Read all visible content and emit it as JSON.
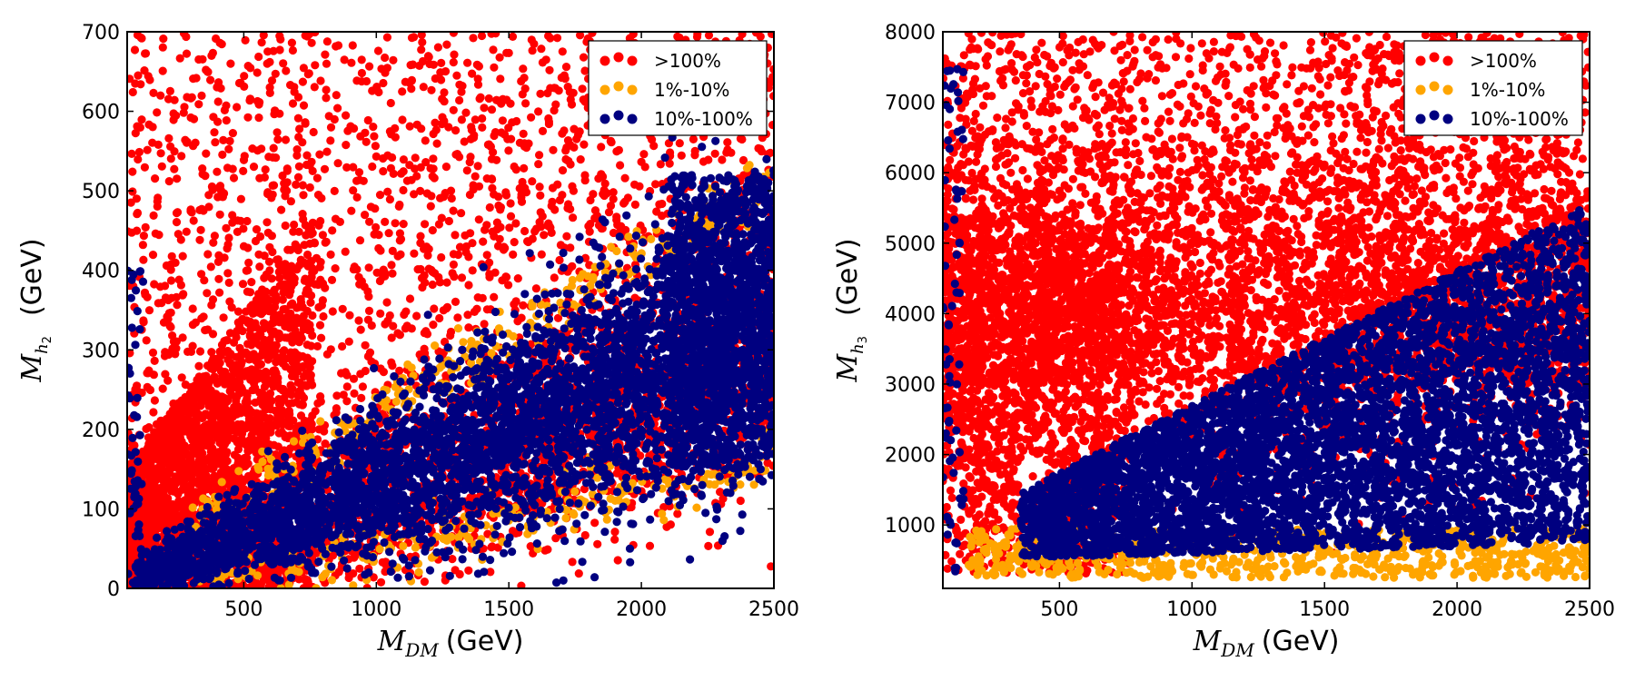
{
  "chart_data": [
    {
      "type": "scatter",
      "xlabel_math": "M",
      "xlabel_sub": "DM",
      "xlabel_unit": "(GeV)",
      "ylabel_math": "M",
      "ylabel_sub": "h",
      "ylabel_subsub": "2",
      "ylabel_unit": "(GeV)",
      "xlim": [
        60,
        2500
      ],
      "ylim": [
        0,
        700
      ],
      "xticks": [
        500,
        1000,
        1500,
        2000,
        2500
      ],
      "yticks": [
        0,
        100,
        200,
        300,
        400,
        500,
        600,
        700
      ],
      "legend_position": "top-right",
      "series": [
        {
          "name": ">100%",
          "color": "#ff0000",
          "region": "upper band: Mh2 from 0 to 700 GeV, dense at low mass, scattered above the diagonal"
        },
        {
          "name": "1%-10%",
          "color": "#ffa500",
          "region": "thin band along edges of the blue band"
        },
        {
          "name": "10%-100%",
          "color": "#000080",
          "region": "diagonal band: Mh2 roughly 0.1*MDM to 0.2*MDM"
        }
      ]
    },
    {
      "type": "scatter",
      "xlabel_math": "M",
      "xlabel_sub": "DM",
      "xlabel_unit": "(GeV)",
      "ylabel_math": "M",
      "ylabel_sub": "h",
      "ylabel_subsub": "3",
      "ylabel_unit": "(GeV)",
      "xlim": [
        60,
        2500
      ],
      "ylim": [
        100,
        8000
      ],
      "xticks": [
        500,
        1000,
        1500,
        2000,
        2500
      ],
      "yticks": [
        1000,
        2000,
        3000,
        4000,
        5000,
        6000,
        7000,
        8000
      ],
      "legend_position": "top-right",
      "series": [
        {
          "name": ">100%",
          "color": "#ff0000",
          "region": "upper region, dense near 4000 GeV"
        },
        {
          "name": "1%-10%",
          "color": "#ffa500",
          "region": "lower edge near 500-1000 GeV"
        },
        {
          "name": "10%-100%",
          "color": "#000080",
          "region": "wedge from ~400 to ~5400 GeV increasing with MDM"
        }
      ]
    }
  ]
}
